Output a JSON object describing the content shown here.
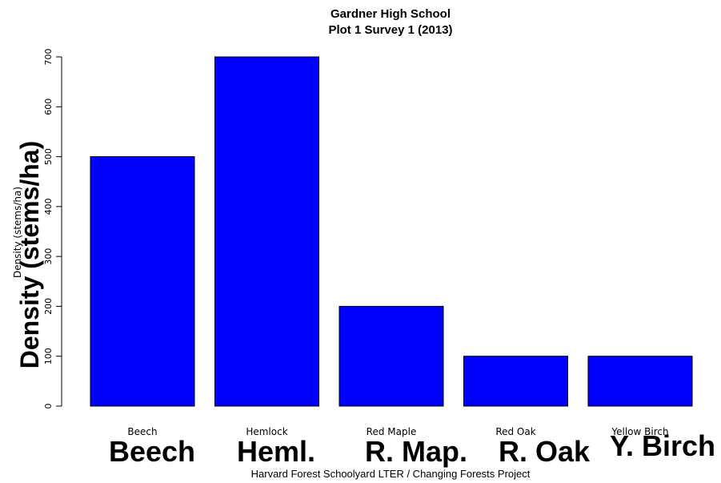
{
  "chart_data": {
    "type": "bar",
    "title": "Gardner High School",
    "subtitle": "Plot 1 Survey 1 (2013)",
    "ylabel": "Density (stems/ha)",
    "ylabel_overlay": "Density (stems/ha)",
    "caption": "Harvard Forest Schoolyard LTER / Changing Forests Project",
    "categories": [
      "Beech",
      "Hemlock",
      "Red Maple",
      "Red Oak",
      "Yellow Birch"
    ],
    "category_overlays": [
      "Beech",
      "Heml.",
      "R. Map.",
      "R. Oak",
      "Y. Birch"
    ],
    "values": [
      500,
      700,
      200,
      100,
      100
    ],
    "ylim": [
      0,
      700
    ],
    "yticks": [
      0,
      100,
      200,
      300,
      400,
      500,
      600,
      700
    ],
    "bar_color": "#0000ff",
    "grid": false
  }
}
